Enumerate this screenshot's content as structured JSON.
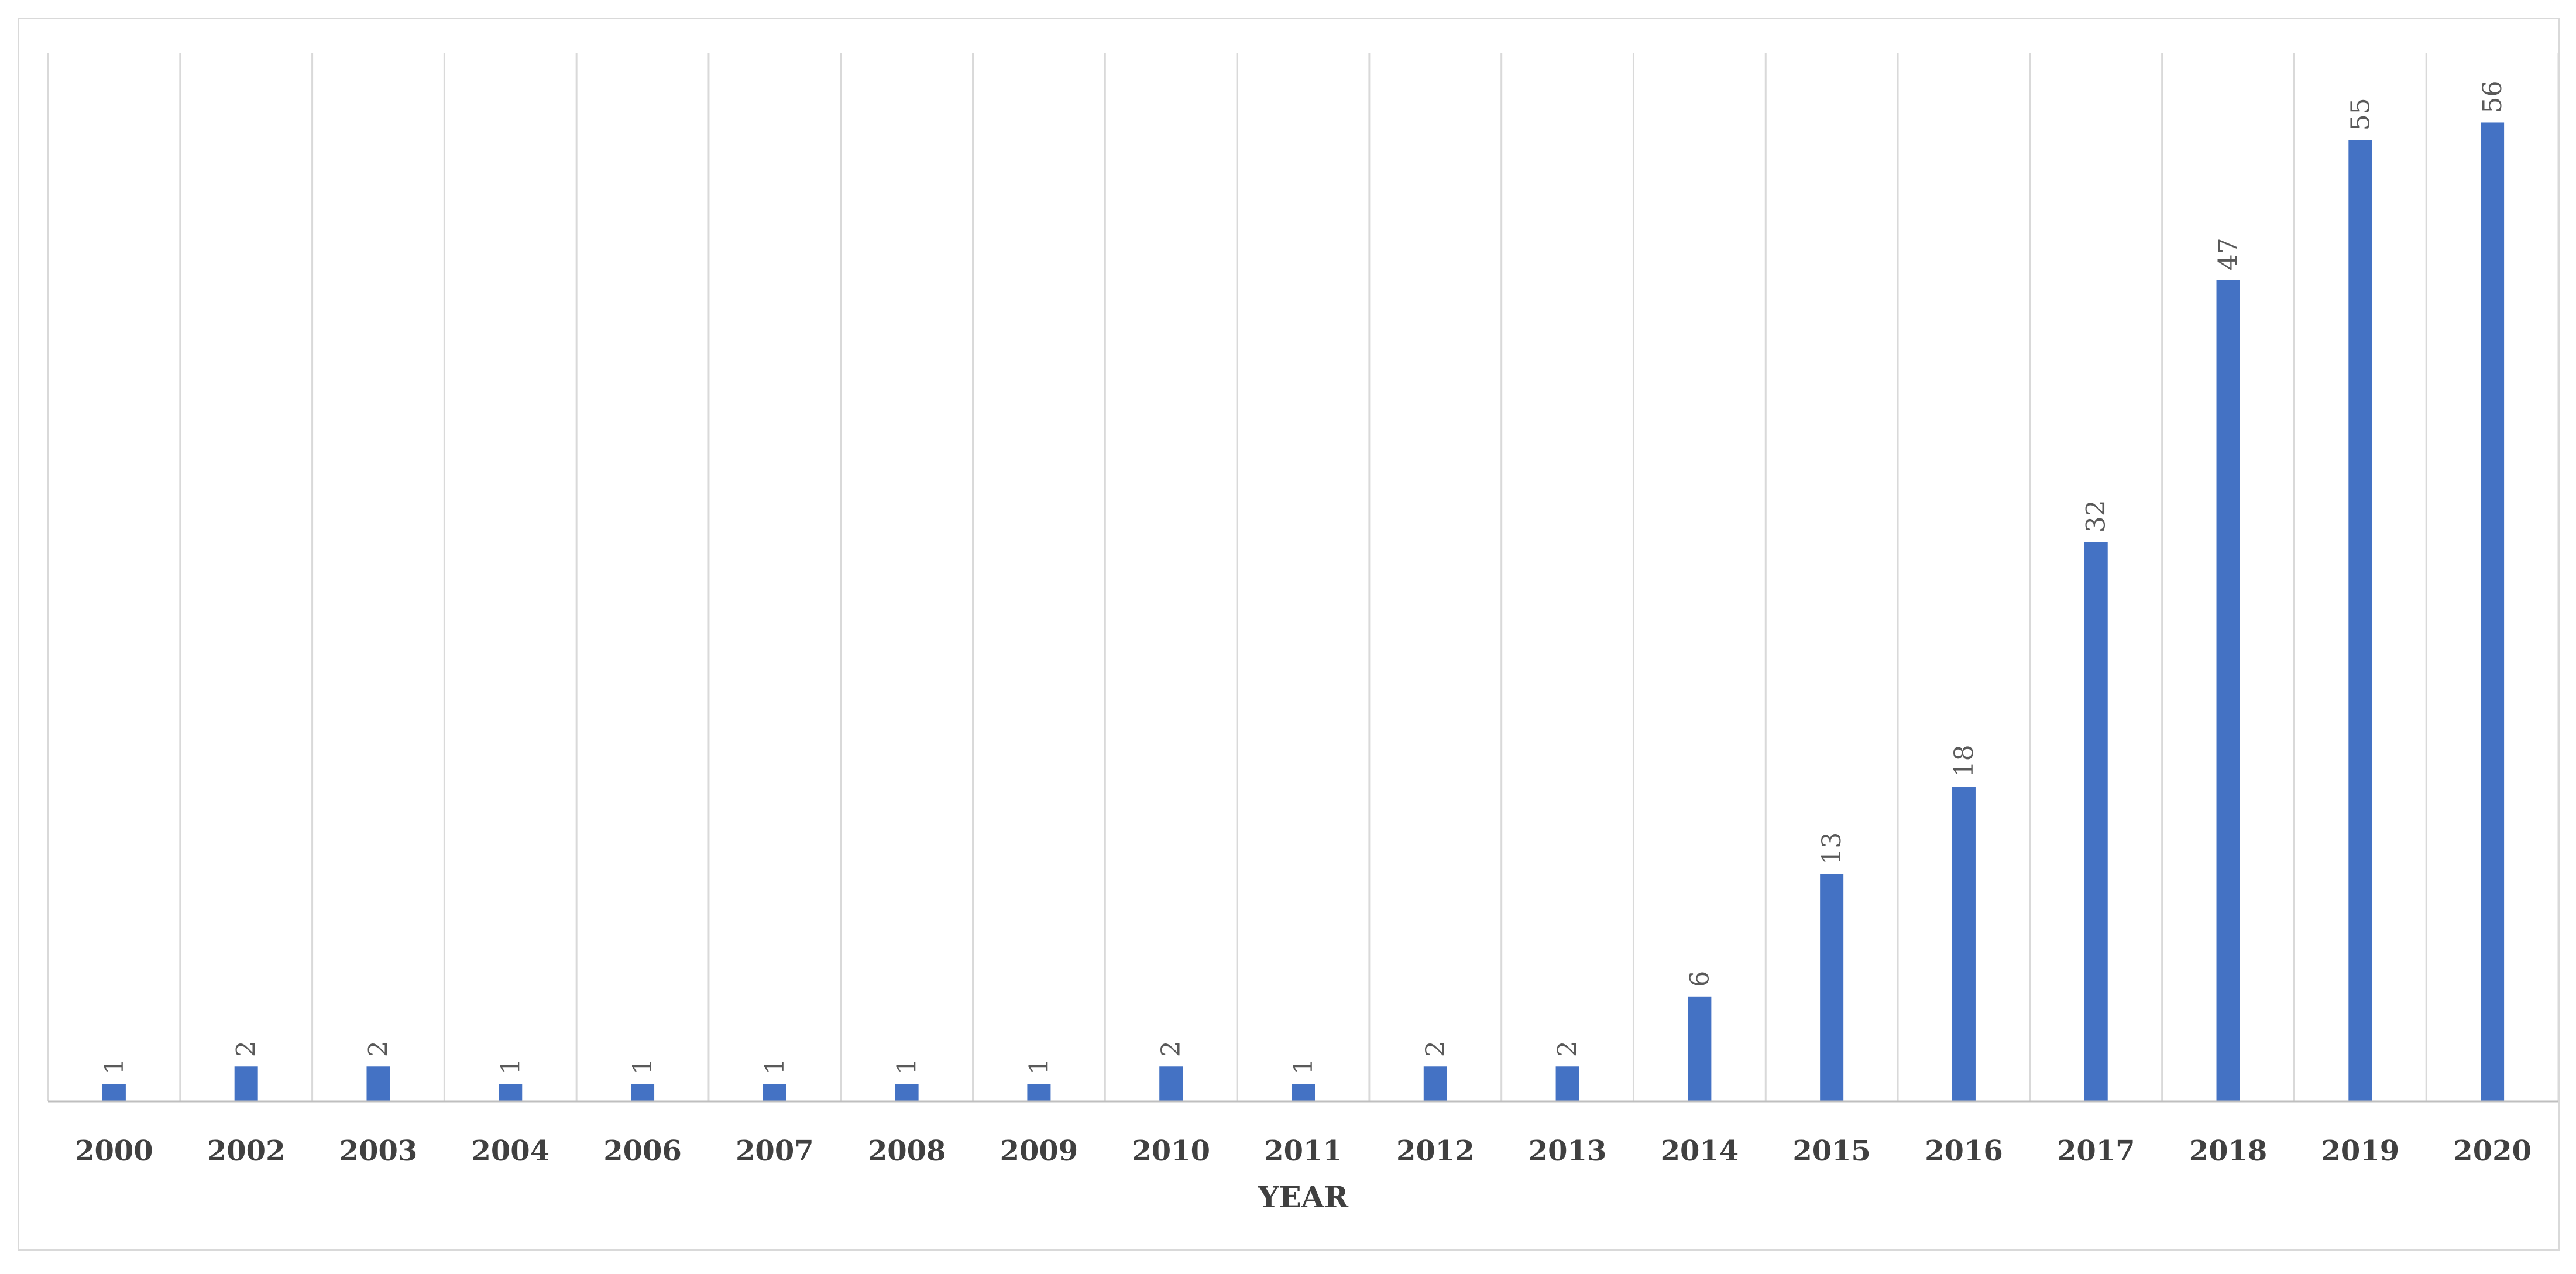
{
  "chart_data": {
    "type": "bar",
    "title": "",
    "xlabel": "YEAR",
    "ylabel": "",
    "categories": [
      "2000",
      "2002",
      "2003",
      "2004",
      "2006",
      "2007",
      "2008",
      "2009",
      "2010",
      "2011",
      "2012",
      "2013",
      "2014",
      "2015",
      "2016",
      "2017",
      "2018",
      "2019",
      "2020"
    ],
    "values": [
      1,
      2,
      2,
      1,
      1,
      1,
      1,
      1,
      2,
      1,
      2,
      2,
      6,
      13,
      18,
      32,
      47,
      55,
      56
    ],
    "ylim": [
      0,
      60
    ],
    "grid": "vertical",
    "legend": "none",
    "bar_color": "#4472c4",
    "gridline_color": "#d9d9d9",
    "axis_color": "#bfbfbf",
    "data_labels": true,
    "data_label_orientation": "rotated-vertical"
  }
}
